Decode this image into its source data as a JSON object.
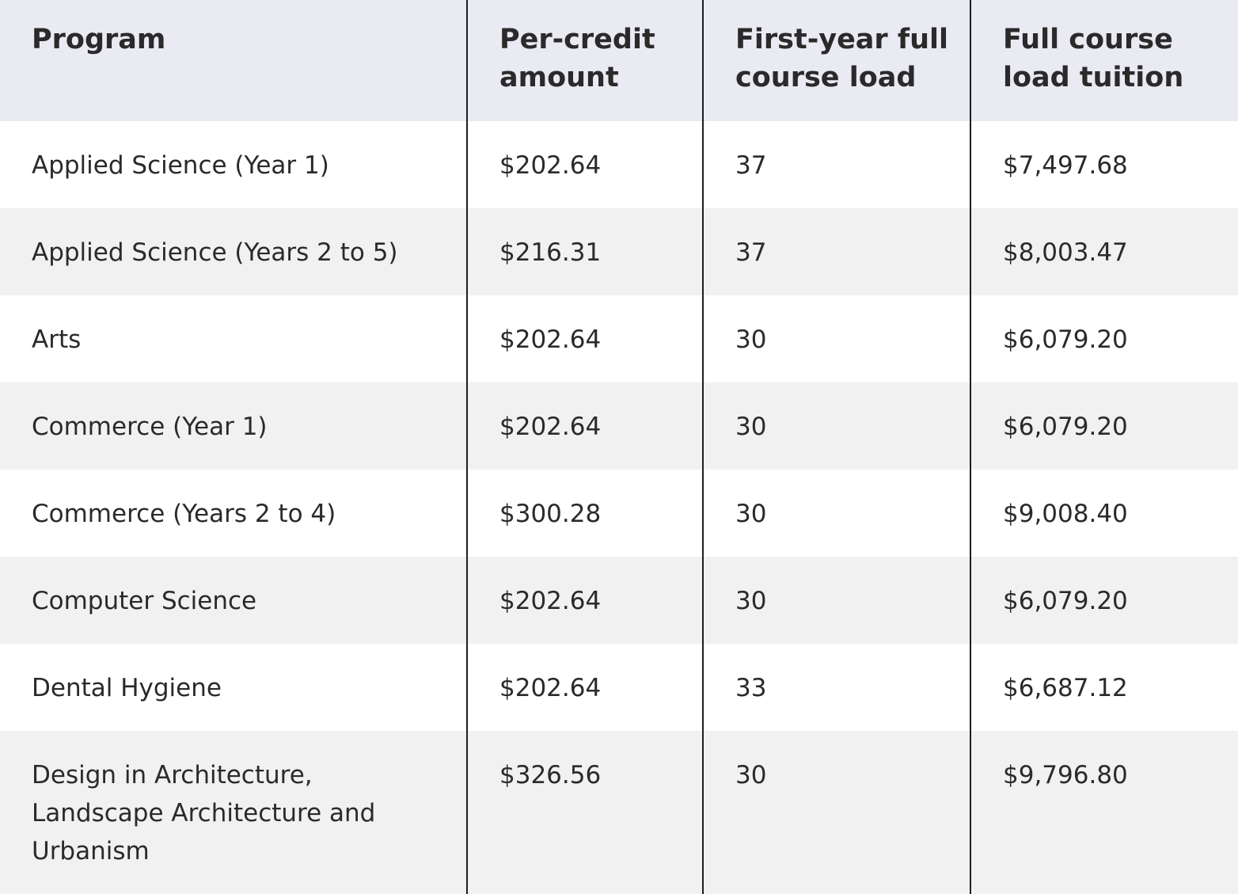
{
  "table": {
    "headers": {
      "program": "Program",
      "per_credit": "Per-credit amount",
      "first_year_load": "First-year full course load",
      "full_tuition": "Full course load tuition"
    },
    "rows": [
      {
        "program": "Applied Science (Year 1)",
        "per_credit": "$202.64",
        "load": "37",
        "tuition": "$7,497.68"
      },
      {
        "program": "Applied Science (Years 2 to 5)",
        "per_credit": "$216.31",
        "load": "37",
        "tuition": "$8,003.47"
      },
      {
        "program": "Arts",
        "per_credit": "$202.64",
        "load": "30",
        "tuition": "$6,079.20"
      },
      {
        "program": "Commerce (Year 1)",
        "per_credit": "$202.64",
        "load": "30",
        "tuition": "$6,079.20"
      },
      {
        "program": "Commerce (Years 2 to 4)",
        "per_credit": "$300.28",
        "load": "30",
        "tuition": "$9,008.40"
      },
      {
        "program": "Computer Science",
        "per_credit": "$202.64",
        "load": "30",
        "tuition": "$6,079.20"
      },
      {
        "program": "Dental Hygiene",
        "per_credit": "$202.64",
        "load": "33",
        "tuition": "$6,687.12"
      },
      {
        "program": "Design in Architecture, Landscape Architecture and Urbanism",
        "per_credit": "$326.56",
        "load": "30",
        "tuition": "$9,796.80"
      }
    ]
  }
}
